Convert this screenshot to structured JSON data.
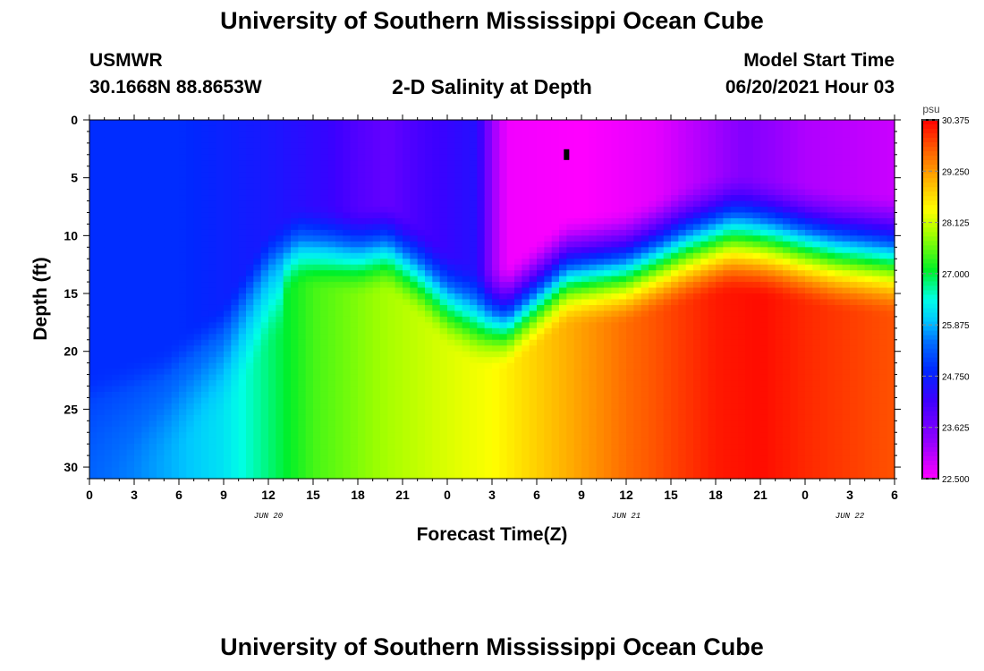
{
  "header": {
    "title": "University of Southern Mississippi Ocean Cube",
    "station": "USMWR",
    "coords": "30.1668N  88.8653W",
    "subtitle": "2-D Salinity at Depth",
    "model_label": "Model Start Time",
    "model_time": "06/20/2021 Hour 03"
  },
  "footer": {
    "title": "University of Southern Mississippi Ocean Cube"
  },
  "chart_data": {
    "type": "heatmap",
    "title": "2-D Salinity at Depth",
    "xlabel": "Forecast Time(Z)",
    "ylabel": "Depth (ft)",
    "x_range_hours": [
      0,
      54
    ],
    "y_range_ft": [
      0,
      31
    ],
    "x_ticks": [
      "0",
      "3",
      "6",
      "9",
      "12",
      "15",
      "18",
      "21",
      "0",
      "3",
      "6",
      "9",
      "12",
      "15",
      "18",
      "21",
      "0",
      "3",
      "6"
    ],
    "y_ticks": [
      "0",
      "5",
      "10",
      "15",
      "20",
      "25",
      "30"
    ],
    "date_labels": [
      {
        "label": "JUN 20",
        "hour": 12
      },
      {
        "label": "JUN 21",
        "hour": 36
      },
      {
        "label": "JUN 22",
        "hour": 51
      }
    ],
    "colorbar": {
      "unit": "psu",
      "min": 22.5,
      "max": 30.375,
      "tick_labels": [
        "30.375",
        "29.250",
        "28.125",
        "27.000",
        "25.875",
        "24.750",
        "23.625",
        "22.500"
      ]
    },
    "field_description": "Surface layer fresher (~22.5-25 psu) above a halocline at ~8-17 ft; deeper water saltier, increasing with time from ~25.5 to ~30 psu",
    "marker": {
      "hour": 32,
      "depth_ft": 3
    }
  },
  "colors": {
    "min_color": "#ff00ff",
    "max_color": "#ff0000"
  }
}
